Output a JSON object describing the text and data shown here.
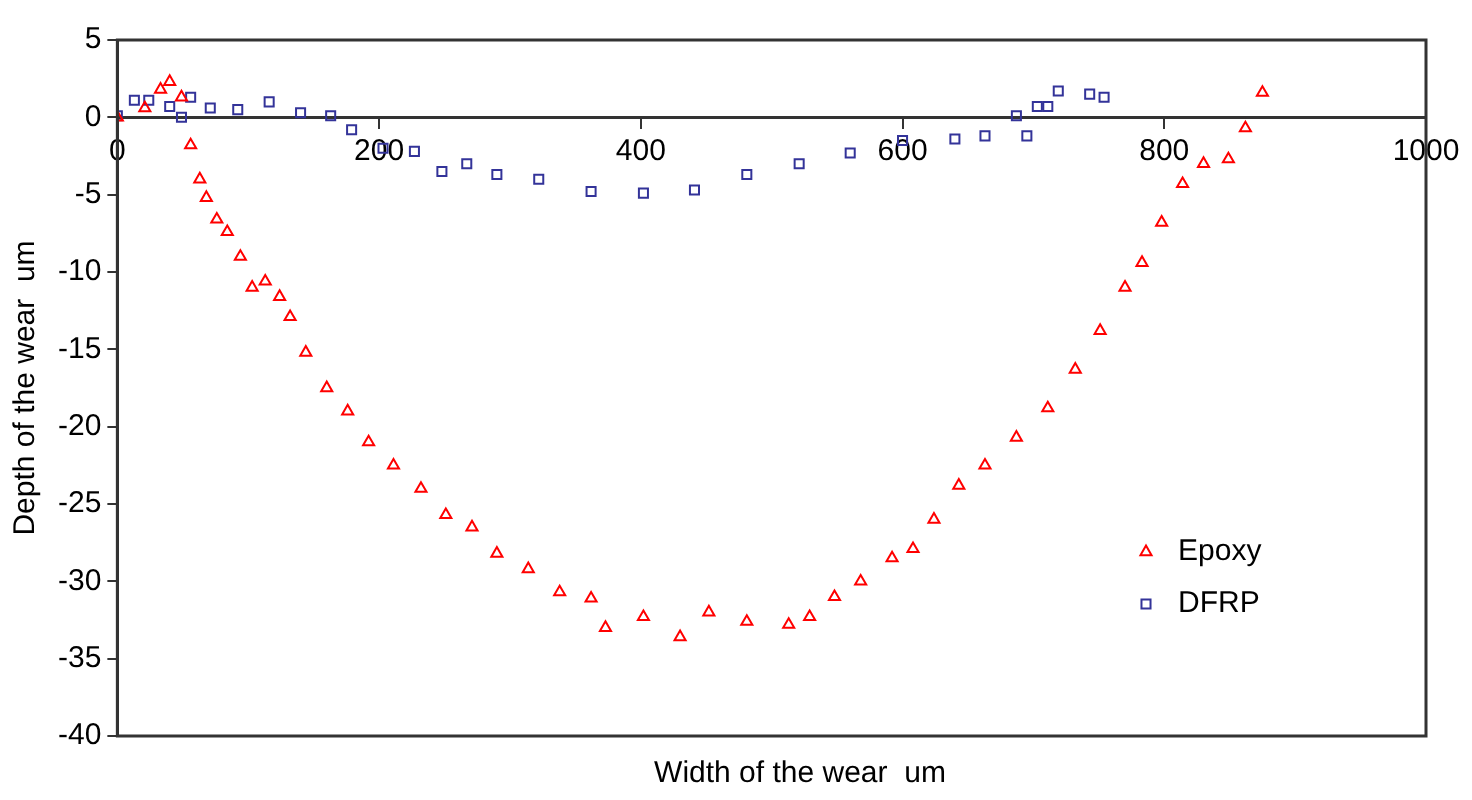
{
  "chart_data": {
    "type": "scatter",
    "xlabel": "Width of the wear  um",
    "ylabel": "Depth of the wear  um",
    "xlim": [
      0,
      1000
    ],
    "xticks": [
      0,
      200,
      400,
      600,
      800,
      1000
    ],
    "ylim": [
      -40,
      5
    ],
    "yticks": [
      -40,
      -35,
      -30,
      -25,
      -20,
      -15,
      -10,
      -5,
      0,
      5
    ],
    "grid": false,
    "legend": "bottom right",
    "series": [
      {
        "name": "Epoxy",
        "color": "#ff0000",
        "marker": "triangle",
        "x": [
          0,
          21,
          33,
          40,
          49,
          56,
          63,
          68,
          76,
          84,
          94,
          103,
          113,
          124,
          132,
          144,
          160,
          176,
          192,
          211,
          232,
          251,
          271,
          290,
          314,
          338,
          362,
          373,
          402,
          430,
          452,
          481,
          513,
          529,
          548,
          568,
          592,
          608,
          624,
          643,
          663,
          687,
          711,
          732,
          751,
          770,
          783,
          798,
          814,
          830,
          849,
          862,
          875
        ],
        "values": [
          0,
          0.6,
          1.8,
          2.3,
          1.3,
          -1.8,
          -4,
          -5.2,
          -6.6,
          -7.4,
          -9,
          -11,
          -10.6,
          -11.6,
          -12.9,
          -15.2,
          -17.5,
          -19,
          -21,
          -22.5,
          -24,
          -25.7,
          -26.5,
          -28.2,
          -29.2,
          -30.7,
          -31.1,
          -33,
          -32.3,
          -33.6,
          -32,
          -32.6,
          -32.8,
          -32.3,
          -31,
          -30,
          -28.5,
          -27.9,
          -26,
          -23.8,
          -22.5,
          -20.7,
          -18.8,
          -16.3,
          -13.8,
          -11,
          -9.4,
          -6.8,
          -4.3,
          -3,
          -2.7,
          -0.7,
          1.6
        ]
      },
      {
        "name": "DFRP",
        "color": "#333399",
        "marker": "square",
        "x": [
          0,
          13,
          24,
          40,
          49,
          56,
          71,
          92,
          116,
          140,
          163,
          179,
          203,
          227,
          248,
          267,
          290,
          322,
          362,
          402,
          441,
          481,
          521,
          560,
          600,
          640,
          663,
          687,
          695,
          703,
          711,
          719,
          743,
          754
        ],
        "values": [
          0.1,
          1.1,
          1.1,
          0.7,
          0,
          1.3,
          0.6,
          0.5,
          1,
          0.3,
          0.1,
          -0.8,
          -2,
          -2.2,
          -3.5,
          -3,
          -3.7,
          -4,
          -4.8,
          -4.9,
          -4.7,
          -3.7,
          -3,
          -2.3,
          -1.5,
          -1.4,
          -1.2,
          0.1,
          -1.2,
          0.7,
          0.7,
          1.7,
          1.5,
          1.3
        ]
      }
    ]
  }
}
